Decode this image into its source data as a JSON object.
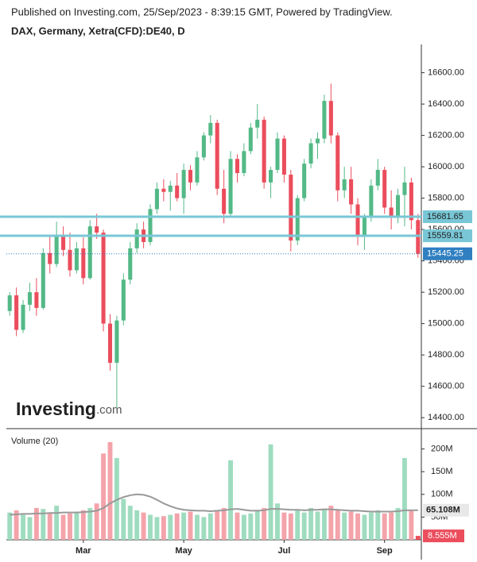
{
  "chart_data": [
    {
      "type": "candlestick",
      "title": "Published on Investing.com, 25/Sep/2023 - 8:39:15 GMT, Powered by TradingView.",
      "subtitle": "DAX, Germany, Xetra(CFD):DE40, D",
      "watermark": {
        "brand": "Investing",
        "suffix": ".com"
      },
      "categories": [
        null,
        null,
        null,
        null,
        null,
        null,
        null,
        null,
        null,
        null,
        null,
        "Mar",
        null,
        null,
        null,
        null,
        null,
        null,
        null,
        null,
        null,
        null,
        null,
        null,
        null,
        null,
        "May",
        null,
        null,
        null,
        null,
        null,
        null,
        null,
        null,
        null,
        null,
        null,
        null,
        null,
        null,
        "Jul",
        null,
        null,
        null,
        null,
        null,
        null,
        null,
        null,
        null,
        null,
        null,
        null,
        null,
        null,
        "Sep",
        null,
        null,
        null,
        null,
        null
      ],
      "open": [
        15080,
        15180,
        14960,
        15120,
        15200,
        15100,
        15450,
        15380,
        15560,
        15470,
        15340,
        15480,
        15290,
        15620,
        15580,
        15000,
        14750,
        15020,
        15280,
        15480,
        15600,
        15520,
        15730,
        15860,
        15840,
        15880,
        15800,
        15980,
        15900,
        16060,
        16200,
        16280,
        15860,
        15700,
        16050,
        15960,
        16100,
        16250,
        16300,
        15900,
        15980,
        16180,
        15950,
        15530,
        15800,
        16020,
        16150,
        16180,
        16420,
        16200,
        15850,
        15920,
        15760,
        15560,
        15680,
        15880,
        15980,
        15740,
        15680,
        15820,
        15900,
        15660
      ],
      "high": [
        15200,
        15230,
        15150,
        15260,
        15290,
        15480,
        15560,
        15650,
        15620,
        15580,
        15520,
        15550,
        15660,
        15700,
        15600,
        15060,
        15050,
        15320,
        15520,
        15640,
        15650,
        15760,
        15900,
        15920,
        15910,
        15960,
        16020,
        16010,
        16100,
        16220,
        16330,
        16300,
        15980,
        16100,
        16080,
        16150,
        16280,
        16400,
        16320,
        16000,
        16220,
        16200,
        15980,
        15820,
        16050,
        16180,
        16220,
        16460,
        16530,
        16220,
        16000,
        16000,
        15800,
        15700,
        15920,
        16050,
        16000,
        15850,
        15860,
        16000,
        15930,
        15700
      ],
      "low": [
        15050,
        14920,
        14940,
        15080,
        15050,
        15090,
        15320,
        15360,
        15430,
        15300,
        15320,
        15250,
        15280,
        15540,
        14950,
        14700,
        14460,
        14990,
        15250,
        15450,
        15480,
        15500,
        15700,
        15780,
        15720,
        15780,
        15700,
        15850,
        15880,
        16040,
        16150,
        15820,
        15640,
        15680,
        15900,
        15940,
        16080,
        16180,
        15860,
        15800,
        15960,
        15900,
        15460,
        15500,
        15780,
        15990,
        16050,
        16150,
        16150,
        15780,
        15800,
        15700,
        15500,
        15470,
        15650,
        15850,
        15700,
        15600,
        15640,
        15620,
        15600,
        15420
      ],
      "close": [
        15180,
        14960,
        15120,
        15200,
        15100,
        15450,
        15380,
        15560,
        15470,
        15340,
        15480,
        15290,
        15620,
        15580,
        15000,
        14750,
        15020,
        15280,
        15480,
        15600,
        15520,
        15730,
        15860,
        15840,
        15880,
        15800,
        15980,
        15900,
        16060,
        16200,
        16280,
        15860,
        15700,
        16050,
        15960,
        16100,
        16250,
        16300,
        15900,
        15980,
        16180,
        15950,
        15530,
        15800,
        16020,
        16150,
        16180,
        16420,
        16200,
        15850,
        15920,
        15760,
        15560,
        15680,
        15880,
        15980,
        15740,
        15680,
        15820,
        15900,
        15660,
        15445
      ],
      "colors": {
        "up": "#53b987",
        "down": "#eb4d5c"
      },
      "ylim": [
        14340,
        16760
      ],
      "yticks": [
        {
          "value": 14400,
          "label": "14400.00"
        },
        {
          "value": 14600,
          "label": "14600.00"
        },
        {
          "value": 14800,
          "label": "14800.00"
        },
        {
          "value": 15000,
          "label": "15000.00"
        },
        {
          "value": 15200,
          "label": "15200.00"
        },
        {
          "value": 15400,
          "label": "15400.00"
        },
        {
          "value": 15600,
          "label": "15600.00"
        },
        {
          "value": 15800,
          "label": "15800.00"
        },
        {
          "value": 16000,
          "label": "16000.00"
        },
        {
          "value": 16200,
          "label": "16200.00"
        },
        {
          "value": 16400,
          "label": "16400.00"
        },
        {
          "value": 16600,
          "label": "16600.00"
        }
      ],
      "levels": [
        15681.65,
        15559.81
      ],
      "level_color": "#79c7d6",
      "last": 15445.25,
      "last_color": "#2f7fc1"
    },
    {
      "type": "bar",
      "title": "Volume (20)",
      "values": [
        60,
        65,
        55,
        50,
        70,
        68,
        60,
        75,
        55,
        58,
        62,
        65,
        70,
        80,
        190,
        215,
        180,
        90,
        75,
        65,
        60,
        55,
        50,
        52,
        55,
        58,
        60,
        62,
        55,
        50,
        58,
        65,
        70,
        175,
        60,
        55,
        58,
        65,
        70,
        210,
        80,
        60,
        58,
        65,
        60,
        70,
        62,
        68,
        75,
        65,
        60,
        62,
        58,
        55,
        60,
        65,
        58,
        60,
        70,
        180,
        65,
        8.555
      ],
      "last_label": "8.555M",
      "colors": {
        "up": "#9fdcbf",
        "down": "#f4a3aa",
        "last": "#eb4d5c"
      },
      "ma": {
        "values": [
          55,
          56,
          57,
          57,
          58,
          58,
          59,
          59,
          60,
          60,
          60,
          61,
          62,
          64,
          70,
          80,
          88,
          94,
          98,
          100,
          99,
          95,
          88,
          80,
          74,
          69,
          66,
          65,
          64,
          64,
          63,
          64,
          65,
          67,
          68,
          66,
          64,
          64,
          65,
          68,
          68,
          67,
          66,
          66,
          65,
          66,
          66,
          67,
          67,
          66,
          65,
          64,
          64,
          63,
          62,
          62,
          62,
          62,
          63,
          65,
          65,
          65.108
        ],
        "color": "#999999",
        "last_label": "65.108M"
      },
      "ylim": [
        0,
        236
      ],
      "yticks": [
        {
          "value": 50,
          "label": "50M"
        },
        {
          "value": 100,
          "label": "100M"
        },
        {
          "value": 150,
          "label": "150M"
        },
        {
          "value": 200,
          "label": "200M"
        }
      ]
    }
  ]
}
